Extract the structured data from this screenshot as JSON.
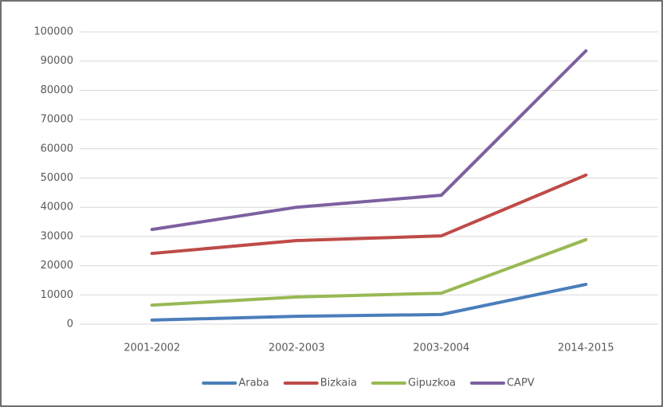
{
  "chart_data": {
    "type": "line",
    "categories": [
      "2001-2002",
      "2002-2003",
      "2003-2004",
      "2014-2015"
    ],
    "series": [
      {
        "name": "Araba",
        "color": "#4a7ebb",
        "values": [
          1400,
          2700,
          3300,
          13600
        ]
      },
      {
        "name": "Bizkaia",
        "color": "#be4b48",
        "values": [
          24200,
          28600,
          30200,
          51000
        ]
      },
      {
        "name": "Gipuzkoa",
        "color": "#98b954",
        "values": [
          6500,
          9300,
          10600,
          28900
        ]
      },
      {
        "name": "CAPV",
        "color": "#7d60a0",
        "values": [
          32400,
          40000,
          44100,
          93500
        ]
      }
    ],
    "ylim": [
      0,
      100000
    ],
    "yticks": [
      0,
      10000,
      20000,
      30000,
      40000,
      50000,
      60000,
      70000,
      80000,
      90000,
      100000
    ],
    "grid": true,
    "legend": "bottom"
  }
}
